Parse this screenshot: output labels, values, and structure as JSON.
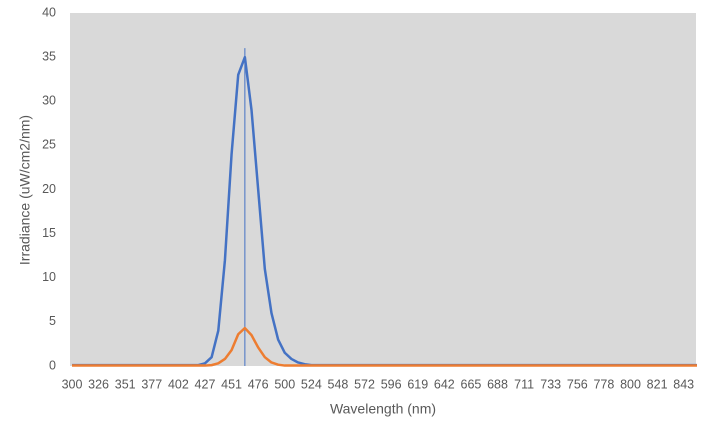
{
  "chart_data": {
    "type": "line",
    "y_label": "Irradiance (uW/cm2/nm)",
    "x_label": "Wavelength (nm)",
    "categories": [
      "300",
      null,
      null,
      null,
      "326",
      null,
      null,
      null,
      "351",
      null,
      null,
      null,
      "377",
      null,
      null,
      null,
      "402",
      null,
      null,
      null,
      "427",
      null,
      null,
      null,
      "451",
      null,
      null,
      null,
      "476",
      null,
      null,
      null,
      "500",
      null,
      null,
      null,
      "524",
      null,
      null,
      null,
      "548",
      null,
      null,
      null,
      "572",
      null,
      null,
      null,
      "596",
      null,
      null,
      null,
      "619",
      null,
      null,
      null,
      "642",
      null,
      null,
      null,
      "665",
      null,
      null,
      null,
      "688",
      null,
      null,
      null,
      "711",
      null,
      null,
      null,
      "733",
      null,
      null,
      null,
      "756",
      null,
      null,
      null,
      "778",
      null,
      null,
      null,
      "800",
      null,
      null,
      null,
      "821",
      null,
      null,
      null,
      "843",
      null,
      null
    ],
    "series": [
      {
        "color": "#4472c4",
        "values": [
          0.1,
          0.1,
          0.1,
          0.1,
          0.1,
          0.1,
          0.1,
          0.1,
          0.1,
          0.1,
          0.1,
          0.1,
          0.1,
          0.1,
          0.1,
          0.1,
          0.1,
          0.1,
          0.1,
          0.1,
          0.3,
          1,
          4,
          12,
          24,
          33,
          35,
          29,
          20,
          11,
          6,
          3,
          1.5,
          0.8,
          0.4,
          0.2,
          0.1,
          0.1,
          0.1,
          0.1,
          0.1,
          0.1,
          0.1,
          0.1,
          0.1,
          0.1,
          0.1,
          0.1,
          0.1,
          0.1,
          0.1,
          0.1,
          0.1,
          0.1,
          0.1,
          0.1,
          0.1,
          0.1,
          0.1,
          0.1,
          0.1,
          0.1,
          0.1,
          0.1,
          0.1,
          0.1,
          0.1,
          0.1,
          0.1,
          0.1,
          0.1,
          0.1,
          0.1,
          0.1,
          0.1,
          0.1,
          0.1,
          0.1,
          0.1,
          0.1,
          0.1,
          0.1,
          0.1,
          0.1,
          0.1,
          0.1,
          0.1,
          0.1,
          0.1,
          0.1,
          0.1,
          0.1,
          0.1,
          0.1,
          0.1
        ]
      },
      {
        "color": "#ed7d31",
        "values": [
          0.05,
          0.05,
          0.05,
          0.05,
          0.05,
          0.05,
          0.05,
          0.05,
          0.05,
          0.05,
          0.05,
          0.05,
          0.05,
          0.05,
          0.05,
          0.05,
          0.05,
          0.05,
          0.05,
          0.05,
          0.05,
          0.1,
          0.3,
          0.8,
          1.8,
          3.6,
          4.3,
          3.5,
          2.1,
          1,
          0.4,
          0.15,
          0.05,
          0.05,
          0.05,
          0.05,
          0.05,
          0.05,
          0.05,
          0.05,
          0.05,
          0.05,
          0.05,
          0.05,
          0.05,
          0.05,
          0.05,
          0.05,
          0.05,
          0.05,
          0.05,
          0.05,
          0.05,
          0.05,
          0.05,
          0.05,
          0.05,
          0.05,
          0.05,
          0.05,
          0.05,
          0.05,
          0.05,
          0.05,
          0.05,
          0.05,
          0.05,
          0.05,
          0.05,
          0.05,
          0.05,
          0.05,
          0.05,
          0.05,
          0.05,
          0.05,
          0.05,
          0.05,
          0.05,
          0.05,
          0.05,
          0.05,
          0.05,
          0.05,
          0.05,
          0.05,
          0.05,
          0.05,
          0.05,
          0.05,
          0.05,
          0.05,
          0.05,
          0.05,
          0.05
        ]
      }
    ],
    "ylim": [
      0,
      40
    ],
    "yticks": [
      0,
      5,
      10,
      15,
      20,
      25,
      30,
      35,
      40
    ],
    "plot_background": "#d9d9d9"
  }
}
